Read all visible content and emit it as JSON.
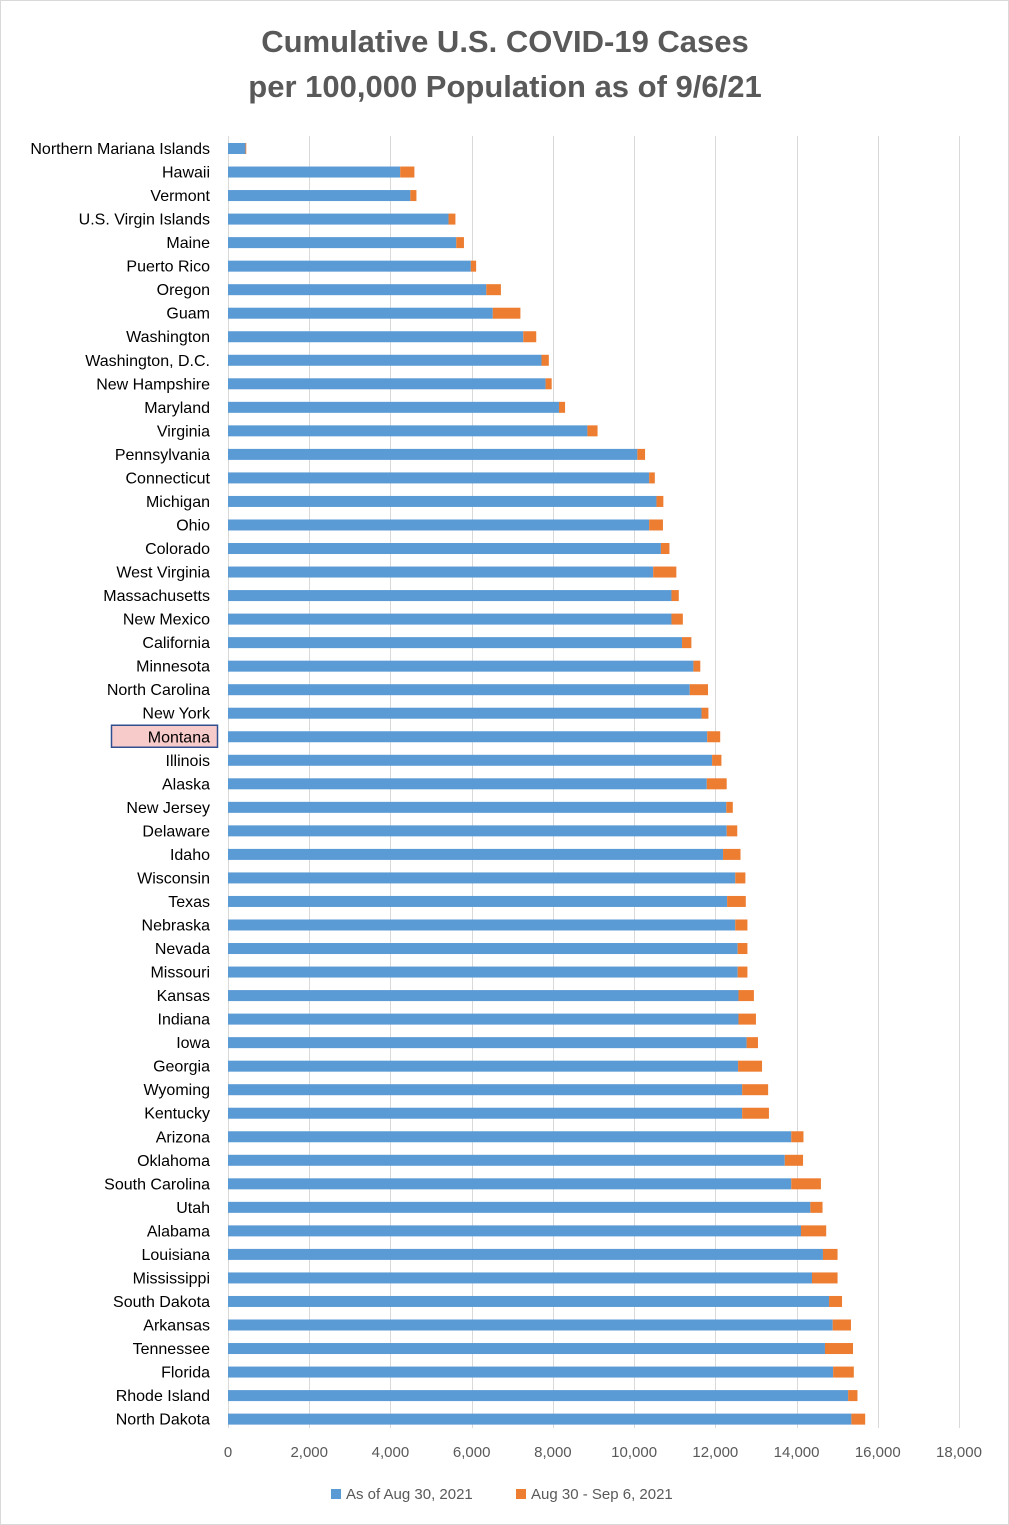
{
  "chart_data": {
    "type": "bar",
    "orientation": "horizontal",
    "stacked": true,
    "title_lines": [
      "Cumulative U.S. COVID-19 Cases",
      "per 100,000 Population as of 9/6/21"
    ],
    "xlim": [
      0,
      18000
    ],
    "x_ticks": [
      0,
      2000,
      4000,
      6000,
      8000,
      10000,
      12000,
      14000,
      16000,
      18000
    ],
    "x_tick_labels": [
      "0",
      "2,000",
      "4,000",
      "6,000",
      "8,000",
      "10,000",
      "12,000",
      "14,000",
      "16,000",
      "18,000"
    ],
    "grid": "vertical",
    "legend_position": "bottom",
    "highlighted_category": "Montana",
    "categories": [
      "Northern Mariana Islands",
      "Hawaii",
      "Vermont",
      "U.S. Virgin Islands",
      "Maine",
      "Puerto Rico",
      "Oregon",
      "Guam",
      "Washington",
      "Washington, D.C.",
      "New Hampshire",
      "Maryland",
      "Virginia",
      "Pennsylvania",
      "Connecticut",
      "Michigan",
      "Ohio",
      "Colorado",
      "West Virginia",
      "Massachusetts",
      "New Mexico",
      "California",
      "Minnesota",
      "North Carolina",
      "New York",
      "Montana",
      "Illinois",
      "Alaska",
      "New Jersey",
      "Delaware",
      "Idaho",
      "Wisconsin",
      "Texas",
      "Nebraska",
      "Nevada",
      "Missouri",
      "Kansas",
      "Indiana",
      "Iowa",
      "Georgia",
      "Wyoming",
      "Kentucky",
      "Arizona",
      "Oklahoma",
      "South Carolina",
      "Utah",
      "Alabama",
      "Louisiana",
      "Mississippi",
      "South Dakota",
      "Arkansas",
      "Tennessee",
      "Florida",
      "Rhode Island",
      "North Dakota"
    ],
    "series": [
      {
        "name": "As of Aug 30, 2021",
        "color": "#5b9bd5",
        "values": [
          430,
          4240,
          4490,
          5430,
          5620,
          5980,
          6360,
          6520,
          7270,
          7720,
          7820,
          8150,
          8850,
          10080,
          10370,
          10550,
          10370,
          10660,
          10470,
          10920,
          10920,
          11180,
          11460,
          11370,
          11660,
          11800,
          11920,
          11790,
          12270,
          12280,
          12190,
          12490,
          12290,
          12490,
          12550,
          12550,
          12570,
          12570,
          12770,
          12560,
          12660,
          12660,
          13870,
          13710,
          13870,
          14340,
          14110,
          14650,
          14380,
          14800,
          14890,
          14700,
          14900,
          15270,
          15350
        ]
      },
      {
        "name": "Aug 30 - Sep 6, 2021",
        "color": "#ed7d31",
        "values": [
          20,
          350,
          150,
          170,
          190,
          130,
          360,
          680,
          320,
          180,
          150,
          150,
          250,
          190,
          140,
          170,
          340,
          210,
          570,
          180,
          280,
          230,
          170,
          450,
          170,
          320,
          230,
          490,
          160,
          260,
          430,
          250,
          460,
          300,
          240,
          240,
          380,
          430,
          280,
          590,
          640,
          660,
          300,
          450,
          730,
          300,
          620,
          360,
          630,
          320,
          450,
          690,
          510,
          230,
          340
        ]
      }
    ]
  }
}
